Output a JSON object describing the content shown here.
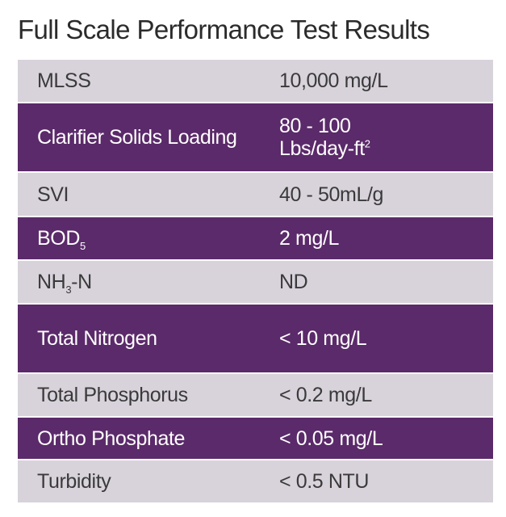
{
  "title": "Full Scale Performance Test Results",
  "table": {
    "rows": [
      {
        "parameter": "MLSS",
        "result": "10,000 mg/L"
      },
      {
        "parameter": "Clarifier Solids Loading",
        "result": [
          "80 - 100",
          [
            "Lbs/day-ft",
            {
              "sup": "2"
            }
          ]
        ]
      },
      {
        "parameter": "SVI",
        "result": "40 - 50mL/g"
      },
      {
        "parameter": [
          [
            "BOD",
            {
              "sub": "5"
            }
          ]
        ],
        "result": "2 mg/L"
      },
      {
        "parameter": [
          [
            "NH",
            {
              "sub": "3"
            },
            "-N"
          ]
        ],
        "result": "ND"
      },
      {
        "parameter": "Total Nitrogen",
        "result": "< 10 mg/L"
      },
      {
        "parameter": "Total Phosphorus",
        "result": "< 0.2 mg/L"
      },
      {
        "parameter": "Ortho Phosphate",
        "result": "< 0.05 mg/L"
      },
      {
        "parameter": "Turbidity",
        "result": "< 0.5 NTU"
      }
    ]
  }
}
